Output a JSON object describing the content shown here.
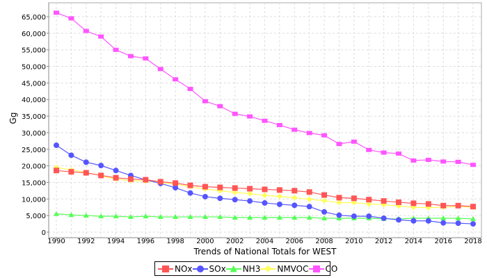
{
  "chart_data": {
    "type": "line",
    "title": "Trends of National Totals for WEST",
    "xlabel": "Trends of National Totals for WEST",
    "ylabel": "Gg",
    "ylim": [
      0,
      65000
    ],
    "xlim": [
      1990,
      2018
    ],
    "grid": true,
    "legend_position": "bottom",
    "x": [
      1990,
      1991,
      1992,
      1993,
      1994,
      1995,
      1996,
      1997,
      1998,
      1999,
      2000,
      2001,
      2002,
      2003,
      2004,
      2005,
      2006,
      2007,
      2008,
      2009,
      2010,
      2011,
      2012,
      2013,
      2014,
      2015,
      2016,
      2017,
      2018
    ],
    "x_ticks": [
      "1990",
      "1992",
      "1994",
      "1996",
      "1998",
      "2000",
      "2002",
      "2004",
      "2006",
      "2008",
      "2010",
      "2012",
      "2014",
      "2016",
      "2018"
    ],
    "y_ticks": [
      "0",
      "5,000",
      "10,000",
      "15,000",
      "20,000",
      "25,000",
      "30,000",
      "35,000",
      "40,000",
      "45,000",
      "50,000",
      "55,000",
      "60,000",
      "65,000"
    ],
    "series": [
      {
        "name": "NOx",
        "color": "#ff5555",
        "marker": "square",
        "values": [
          18600,
          18200,
          17900,
          17100,
          16400,
          16000,
          15800,
          15200,
          14800,
          14100,
          13700,
          13500,
          13300,
          13100,
          12900,
          12700,
          12500,
          12100,
          11200,
          10400,
          10200,
          9800,
          9400,
          9000,
          8700,
          8500,
          8000,
          8000,
          7700
        ]
      },
      {
        "name": "SOx",
        "color": "#5555ff",
        "marker": "circle",
        "values": [
          26200,
          23200,
          21100,
          20100,
          18600,
          17100,
          15800,
          14700,
          13400,
          11800,
          10700,
          10200,
          9800,
          9400,
          8800,
          8400,
          8100,
          7700,
          6100,
          5100,
          4800,
          4800,
          4200,
          3700,
          3400,
          3400,
          2800,
          2700,
          2500
        ]
      },
      {
        "name": "NH3",
        "color": "#55ff55",
        "marker": "triangle",
        "values": [
          5500,
          5200,
          5000,
          4800,
          4800,
          4600,
          4800,
          4600,
          4600,
          4600,
          4600,
          4600,
          4400,
          4400,
          4400,
          4400,
          4400,
          4400,
          4200,
          4200,
          4200,
          4200,
          4000,
          4000,
          4200,
          4200,
          4200,
          4200,
          4000
        ]
      },
      {
        "name": "NMVOC",
        "color": "#ffff55",
        "marker": "diamond",
        "values": [
          19500,
          18800,
          18000,
          17000,
          16000,
          15500,
          15400,
          15000,
          14500,
          13700,
          13000,
          12500,
          12000,
          11600,
          11100,
          10800,
          10400,
          9900,
          9500,
          8900,
          8900,
          8500,
          8300,
          7900,
          7500,
          7400,
          7500,
          7800,
          7500
        ]
      },
      {
        "name": "CO",
        "color": "#ff55ff",
        "marker": "rect",
        "values": [
          66200,
          64500,
          60700,
          59000,
          55000,
          53100,
          52400,
          49200,
          46100,
          43200,
          39500,
          38000,
          35700,
          34900,
          33600,
          32300,
          30900,
          29900,
          29200,
          26600,
          27300,
          24800,
          24000,
          23700,
          21600,
          21800,
          21300,
          21200,
          20300
        ]
      }
    ]
  }
}
